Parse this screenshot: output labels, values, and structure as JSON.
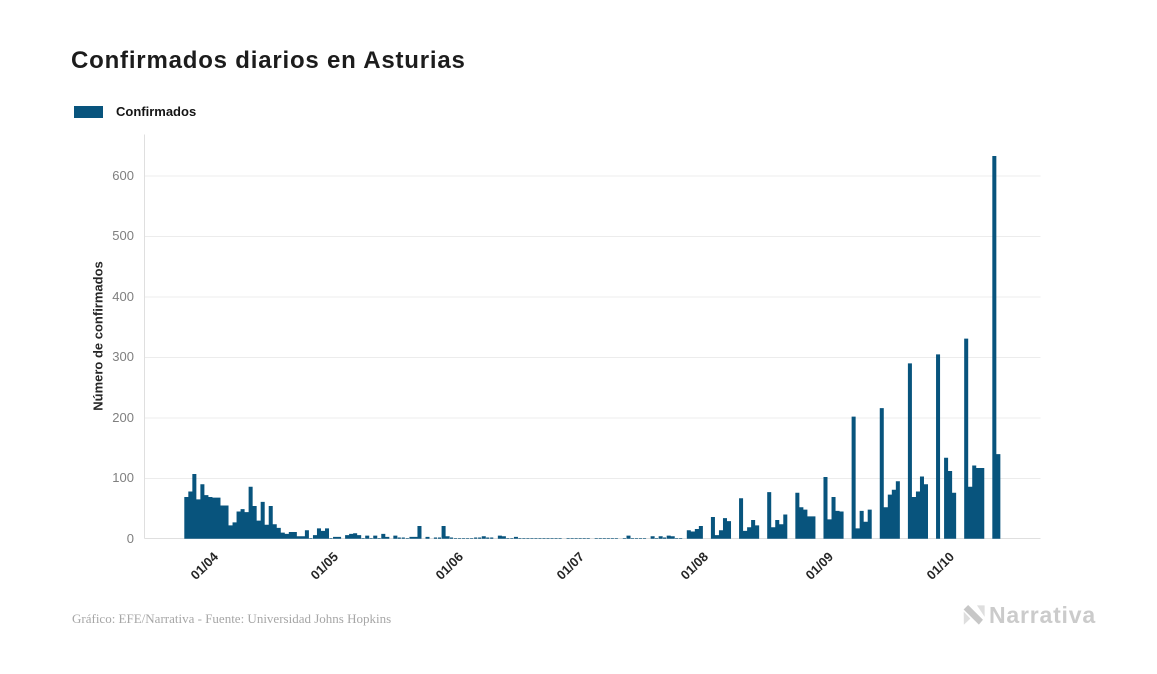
{
  "title": "Confirmados diarios en Asturias",
  "legend": {
    "label": "Confirmados"
  },
  "footer": {
    "credit": "Gráfico: EFE/Narrativa - Fuente: Universidad Johns Hopkins"
  },
  "brand": {
    "name": "Narrativa"
  },
  "colors": {
    "bar": "#08547d",
    "grid": "#ececec",
    "axis_line": "#dfdfdf",
    "ytick_text": "#7f7f7f",
    "xtick_text": "#262626",
    "title_text": "#1c1c1c",
    "footer_text": "#a6a6a6",
    "brand_gray_light": "#dedede",
    "brand_gray_mid": "#c7c7c7",
    "brand_text": "#cbcbcb"
  },
  "chart_data": {
    "type": "bar",
    "title": "Confirmados diarios en Asturias",
    "series_name": "Confirmados",
    "xlabel": "",
    "ylabel": "Número de confirmados",
    "ylim": [
      0,
      668
    ],
    "yticks": [
      0,
      100,
      200,
      300,
      400,
      500,
      600
    ],
    "xtick_labels": [
      "01/04",
      "01/05",
      "01/06",
      "01/07",
      "01/08",
      "01/09",
      "01/10"
    ],
    "grid": true,
    "legend_position": "top-left",
    "dates": [
      "26/03",
      "27/03",
      "28/03",
      "29/03",
      "30/03",
      "31/03",
      "01/04",
      "02/04",
      "03/04",
      "04/04",
      "05/04",
      "06/04",
      "07/04",
      "08/04",
      "09/04",
      "10/04",
      "11/04",
      "12/04",
      "13/04",
      "14/04",
      "15/04",
      "16/04",
      "17/04",
      "18/04",
      "19/04",
      "20/04",
      "21/04",
      "22/04",
      "23/04",
      "24/04",
      "25/04",
      "26/04",
      "27/04",
      "28/04",
      "29/04",
      "30/04",
      "01/05",
      "02/05",
      "03/05",
      "04/05",
      "05/05",
      "06/05",
      "07/05",
      "08/05",
      "09/05",
      "10/05",
      "11/05",
      "12/05",
      "13/05",
      "14/05",
      "15/05",
      "16/05",
      "17/05",
      "18/05",
      "19/05",
      "20/05",
      "21/05",
      "22/05",
      "23/05",
      "24/05",
      "25/05",
      "26/05",
      "27/05",
      "28/05",
      "29/05",
      "30/05",
      "31/05",
      "01/06",
      "02/06",
      "03/06",
      "04/06",
      "05/06",
      "06/06",
      "07/06",
      "08/06",
      "09/06",
      "10/06",
      "11/06",
      "12/06",
      "13/06",
      "14/06",
      "15/06",
      "16/06",
      "17/06",
      "18/06",
      "19/06",
      "20/06",
      "21/06",
      "22/06",
      "23/06",
      "24/06",
      "25/06",
      "26/06",
      "27/06",
      "28/06",
      "29/06",
      "30/06",
      "01/07",
      "02/07",
      "03/07",
      "04/07",
      "05/07",
      "06/07",
      "07/07",
      "08/07",
      "09/07",
      "10/07",
      "11/07",
      "12/07",
      "13/07",
      "14/07",
      "15/07",
      "16/07",
      "17/07",
      "18/07",
      "19/07",
      "20/07",
      "21/07",
      "22/07",
      "23/07",
      "24/07",
      "25/07",
      "26/07",
      "27/07",
      "28/07",
      "29/07",
      "30/07",
      "31/07",
      "01/08",
      "02/08",
      "03/08",
      "04/08",
      "05/08",
      "06/08",
      "07/08",
      "08/08",
      "09/08",
      "10/08",
      "11/08",
      "12/08",
      "13/08",
      "14/08",
      "15/08",
      "16/08",
      "17/08",
      "18/08",
      "19/08",
      "20/08",
      "21/08",
      "22/08",
      "23/08",
      "24/08",
      "25/08",
      "26/08",
      "27/08",
      "28/08",
      "29/08",
      "30/08",
      "31/08",
      "01/09",
      "02/09",
      "03/09",
      "04/09",
      "05/09",
      "06/09",
      "07/09",
      "08/09",
      "09/09",
      "10/09",
      "11/09",
      "12/09",
      "13/09",
      "14/09",
      "15/09",
      "16/09",
      "17/09",
      "18/09",
      "19/09",
      "20/09",
      "21/09",
      "22/09",
      "23/09",
      "24/09",
      "25/09",
      "26/09",
      "27/09",
      "28/09",
      "29/09",
      "30/09",
      "01/10",
      "02/10",
      "03/10",
      "04/10",
      "05/10",
      "06/10",
      "07/10",
      "08/10",
      "09/10",
      "10/10",
      "11/10",
      "12/10",
      "13/10",
      "14/10"
    ],
    "values": [
      69,
      78,
      107,
      65,
      90,
      72,
      69,
      68,
      68,
      55,
      55,
      22,
      27,
      45,
      49,
      44,
      86,
      54,
      30,
      61,
      23,
      54,
      24,
      18,
      10,
      8,
      11,
      11,
      4,
      4,
      14,
      1,
      6,
      17,
      13,
      17,
      1,
      3,
      3,
      0,
      6,
      8,
      9,
      6,
      1,
      5,
      1,
      5,
      1,
      8,
      3,
      0,
      5,
      2,
      2,
      1,
      3,
      3,
      21,
      0,
      3,
      0,
      2,
      2,
      21,
      4,
      2,
      1,
      1,
      1,
      1,
      1,
      2,
      2,
      4,
      2,
      2,
      0,
      5,
      4,
      1,
      1,
      3,
      1,
      1,
      1,
      1,
      1,
      1,
      1,
      1,
      1,
      1,
      1,
      0,
      1,
      1,
      1,
      1,
      1,
      1,
      0,
      1,
      1,
      1,
      1,
      1,
      1,
      0,
      1,
      5,
      1,
      1,
      1,
      1,
      0,
      4,
      1,
      4,
      2,
      5,
      4,
      1,
      1,
      0,
      14,
      12,
      16,
      21,
      0,
      0,
      36,
      6,
      14,
      34,
      29,
      0,
      0,
      67,
      13,
      19,
      31,
      22,
      0,
      0,
      77,
      19,
      31,
      24,
      40,
      0,
      0,
      76,
      52,
      48,
      37,
      37,
      0,
      0,
      102,
      32,
      69,
      46,
      45,
      0,
      0,
      202,
      17,
      46,
      28,
      48,
      0,
      0,
      216,
      52,
      73,
      81,
      95,
      0,
      0,
      290,
      69,
      78,
      103,
      90,
      0,
      0,
      305,
      0,
      134,
      112,
      76,
      0,
      0,
      331,
      86,
      121,
      117,
      117,
      0,
      0,
      633,
      140
    ]
  }
}
